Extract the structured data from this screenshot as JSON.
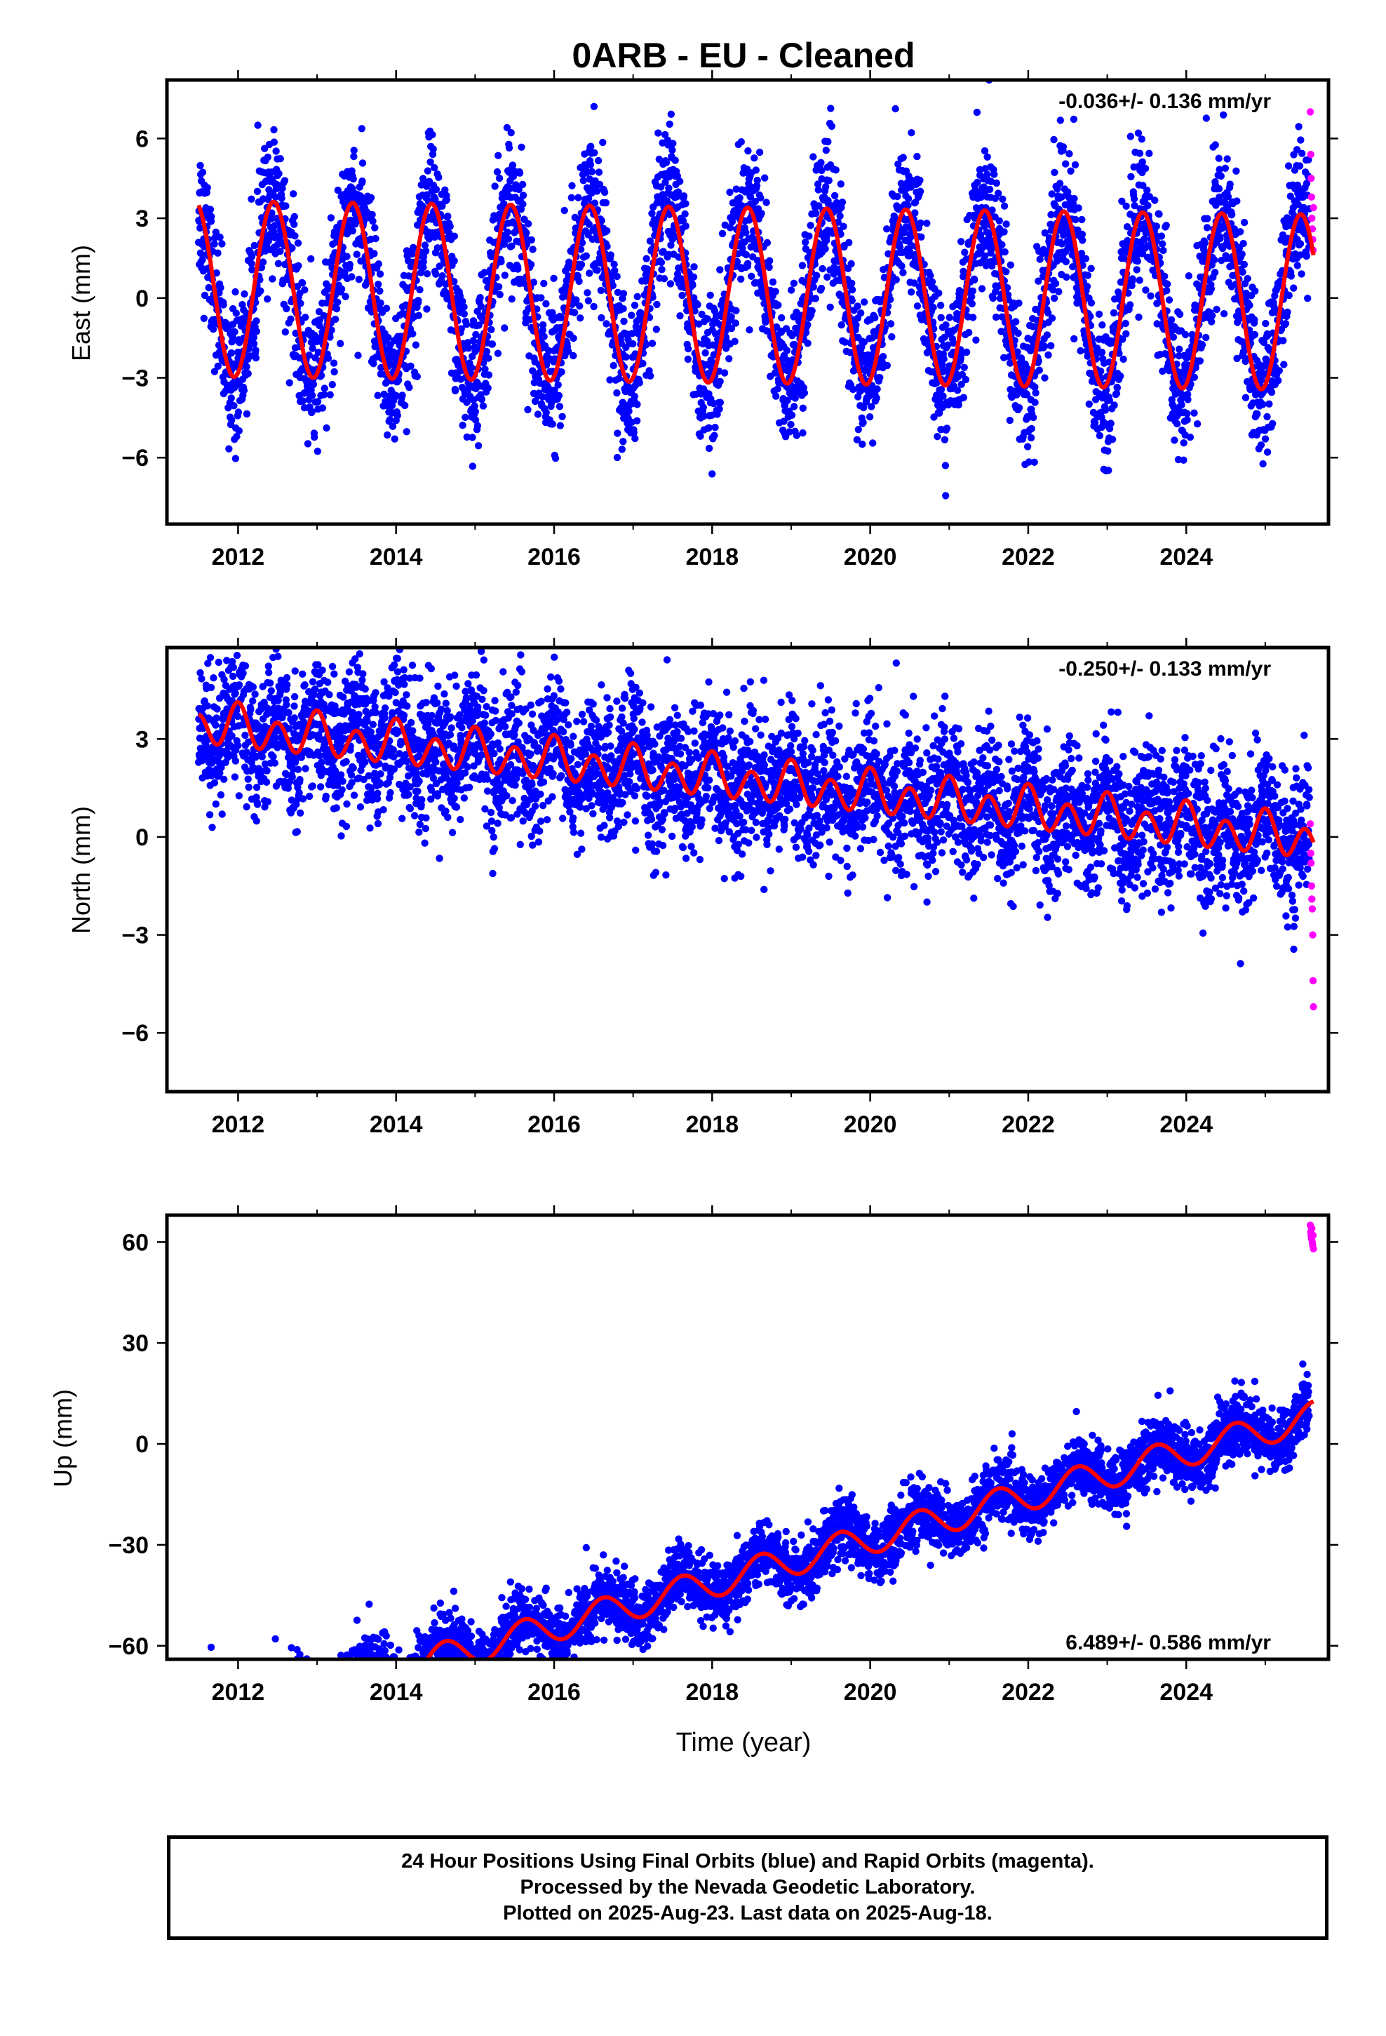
{
  "title": "0ARB  - EU - Cleaned",
  "footer": {
    "line1": "24 Hour Positions Using Final Orbits (blue) and Rapid Orbits (magenta).",
    "line2": "Processed by the Nevada Geodetic Laboratory.",
    "line3": "Plotted on 2025-Aug-23. Last data on 2025-Aug-18."
  },
  "colors": {
    "final_orbits": "#0000ff",
    "rapid_orbits": "#ff00ff",
    "model": "#ff0000"
  },
  "chart_data": [
    {
      "type": "scatter",
      "component": "east",
      "ylabel": "East (mm)",
      "xlabel": "",
      "xlim": [
        2011.1,
        2025.8
      ],
      "ylim": [
        -8.5,
        8.2
      ],
      "xticks": [
        2012,
        2014,
        2016,
        2018,
        2020,
        2022,
        2024
      ],
      "yticks": [
        -6,
        -3,
        0,
        3,
        6
      ],
      "ytick_labels": [
        "−6",
        "−3",
        "0",
        "3",
        "6"
      ],
      "rate_label": "-0.036+/- 0.136 mm/yr",
      "rate_position": "top-right",
      "grid": false,
      "model": {
        "offset": 0.1,
        "slope_mm_per_yr": -0.036,
        "annual_amplitude_mm": 3.3,
        "annual_peak_year_fraction": 0.45,
        "semiannual_amplitude_mm": 0.0
      },
      "series": [
        {
          "name": "Final Orbits (blue)",
          "color": "#0000ff",
          "start": 2011.5,
          "end": 2025.56,
          "scatter_sd_mm": 1.35,
          "points_per_year": 365
        },
        {
          "name": "Rapid Orbits (magenta)",
          "color": "#ff00ff",
          "x": [
            2025.57,
            2025.575,
            2025.58,
            2025.585,
            2025.59,
            2025.595,
            2025.6,
            2025.605,
            2025.61
          ],
          "y": [
            7.0,
            5.4,
            4.5,
            3.8,
            3.0,
            2.6,
            2.2,
            1.8,
            3.4
          ]
        }
      ]
    },
    {
      "type": "scatter",
      "component": "north",
      "ylabel": "North (mm)",
      "xlabel": "",
      "xlim": [
        2011.1,
        2025.8
      ],
      "ylim": [
        -7.8,
        5.8
      ],
      "xticks": [
        2012,
        2014,
        2016,
        2018,
        2020,
        2022,
        2024
      ],
      "yticks": [
        -6,
        -3,
        0,
        3
      ],
      "ytick_labels": [
        "−6",
        "−3",
        "0",
        "3"
      ],
      "rate_label": "-0.250+/- 0.133 mm/yr",
      "rate_position": "top-right",
      "grid": false,
      "model": {
        "offset": 1.7,
        "slope_mm_per_yr": -0.25,
        "annual_amplitude_mm": 0.25,
        "annual_peak_year_fraction": 0.0,
        "semiannual_amplitude_mm": 0.55,
        "semiannual_peak_year_fraction": 0.0
      },
      "series": [
        {
          "name": "Final Orbits (blue)",
          "color": "#0000ff",
          "start": 2011.5,
          "end": 2025.56,
          "scatter_sd_mm": 1.05,
          "points_per_year": 365
        },
        {
          "name": "Rapid Orbits (magenta)",
          "color": "#ff00ff",
          "x": [
            2025.57,
            2025.575,
            2025.58,
            2025.585,
            2025.59,
            2025.595,
            2025.6,
            2025.605,
            2025.61
          ],
          "y": [
            0.4,
            -0.5,
            -0.8,
            -1.5,
            -1.9,
            -2.2,
            -3.0,
            -4.4,
            -5.2
          ]
        }
      ]
    },
    {
      "type": "scatter",
      "component": "up",
      "ylabel": "Up (mm)",
      "xlabel": "Time (year)",
      "xlim": [
        2011.1,
        2025.8
      ],
      "ylim": [
        -64,
        68
      ],
      "xticks": [
        2012,
        2014,
        2016,
        2018,
        2020,
        2022,
        2024
      ],
      "yticks": [
        -60,
        -30,
        0,
        30,
        60
      ],
      "ytick_labels": [
        "−60",
        "−30",
        "0",
        "30",
        "60"
      ],
      "rate_label": "6.489+/- 0.586 mm/yr",
      "rate_position": "bottom-right",
      "grid": false,
      "model": {
        "offset": -38.0,
        "slope_mm_per_yr": 6.489,
        "annual_amplitude_mm": 4.5,
        "annual_peak_year_fraction": 0.62,
        "semiannual_amplitude_mm": 0.0
      },
      "series": [
        {
          "name": "Final Orbits (blue)",
          "color": "#0000ff",
          "start": 2011.5,
          "end": 2025.56,
          "scatter_sd_mm": 4.6,
          "points_per_year": 365
        },
        {
          "name": "Rapid Orbits (magenta)",
          "color": "#ff00ff",
          "x": [
            2025.57,
            2025.575,
            2025.58,
            2025.585,
            2025.59,
            2025.595,
            2025.6,
            2025.605,
            2025.61
          ],
          "y": [
            65,
            63,
            62,
            61,
            64,
            60,
            59,
            62,
            58
          ]
        }
      ]
    }
  ]
}
